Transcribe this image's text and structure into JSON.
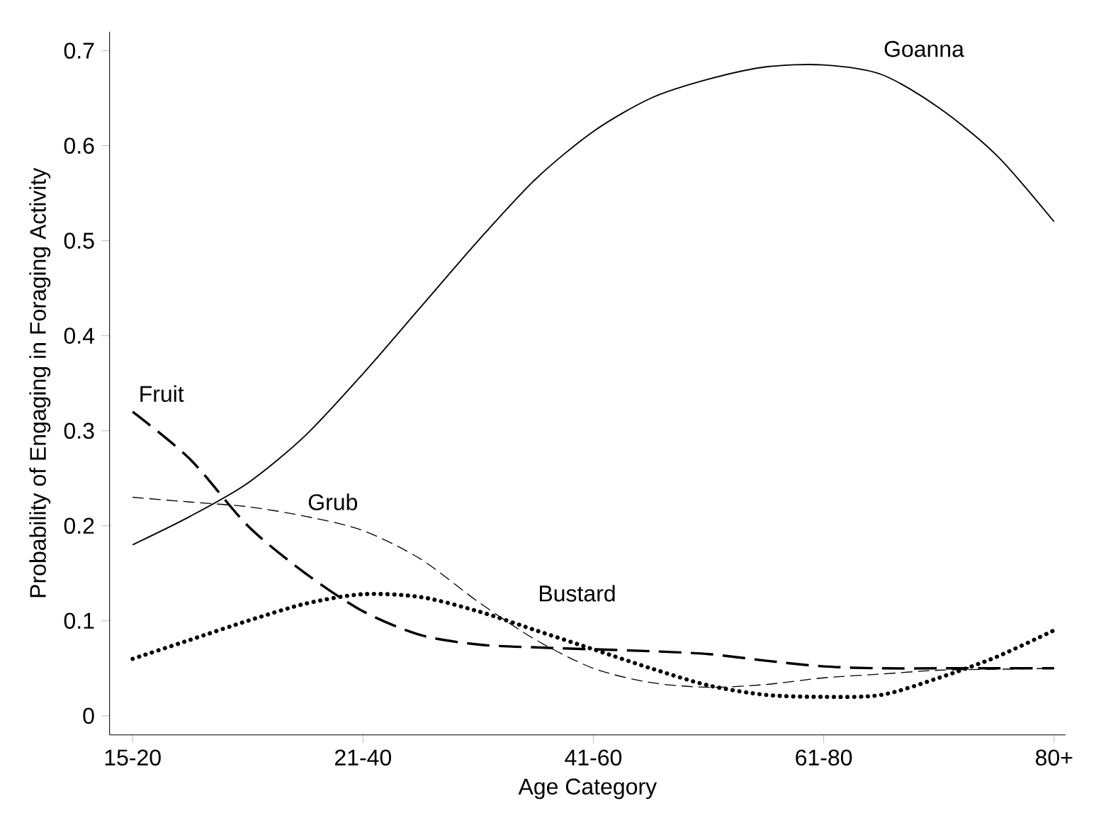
{
  "chart_data": {
    "type": "line",
    "xlabel": "Age Category",
    "ylabel": "Probability of Engaging in Foraging Activity",
    "categories": [
      "15-20",
      null,
      null,
      null,
      "21-40",
      null,
      null,
      null,
      "41-60",
      null,
      null,
      null,
      "61-80",
      null,
      null,
      null,
      "80+"
    ],
    "ylim": [
      -0.02,
      0.72
    ],
    "yticks": [
      0,
      0.1,
      0.2,
      0.3,
      0.4,
      0.5,
      0.6,
      0.7
    ],
    "grid": false,
    "series": [
      {
        "name": "Goanna",
        "color": "#000000",
        "line_style": "solid",
        "values": [
          0.18,
          0.21,
          0.245,
          0.295,
          0.36,
          0.43,
          0.5,
          0.565,
          0.615,
          0.65,
          0.67,
          0.683,
          0.685,
          0.675,
          0.64,
          0.59,
          0.52
        ]
      },
      {
        "name": "Fruit",
        "color": "#000000",
        "line_style": "dashed",
        "values": [
          0.32,
          0.27,
          0.2,
          0.15,
          0.11,
          0.085,
          0.075,
          0.072,
          0.07,
          0.068,
          0.065,
          0.058,
          0.052,
          0.05,
          0.05,
          0.05,
          0.05
        ]
      },
      {
        "name": "Grub",
        "color": "#000000",
        "line_style": "dashed",
        "values": [
          0.23,
          0.225,
          0.22,
          0.21,
          0.195,
          0.165,
          0.12,
          0.08,
          0.05,
          0.035,
          0.03,
          0.033,
          0.04,
          0.044,
          0.048,
          0.049,
          0.05
        ]
      },
      {
        "name": "Bustard",
        "color": "#000000",
        "line_style": "dotted",
        "values": [
          0.06,
          0.08,
          0.1,
          0.118,
          0.128,
          0.125,
          0.11,
          0.09,
          0.07,
          0.05,
          0.032,
          0.022,
          0.02,
          0.022,
          0.04,
          0.062,
          0.09
        ]
      }
    ]
  }
}
